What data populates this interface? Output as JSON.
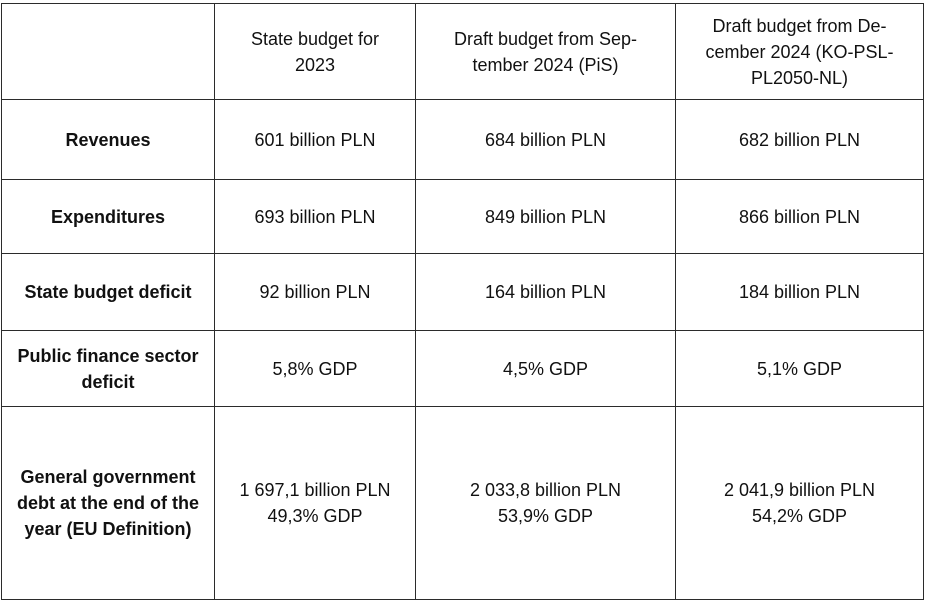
{
  "table": {
    "header": {
      "corner": "",
      "col1_line1": "State budget for",
      "col1_line2": "2023",
      "col2_line1": "Draft budget from Sep-",
      "col2_line2": "tember 2024 (PiS)",
      "col3_line1": "Draft budget from De-",
      "col3_line2": "cember 2024 (KO-PSL-",
      "col3_line3": "PL2050-NL)"
    },
    "rows": [
      {
        "label": "Revenues",
        "v2023": "601 billion PLN",
        "v_sep": "684 billion PLN",
        "v_dec": "682 billion PLN"
      },
      {
        "label": "Expenditures",
        "v2023": "693 billion PLN",
        "v_sep": "849 billion PLN",
        "v_dec": "866 billion PLN"
      },
      {
        "label": "State budget deficit",
        "v2023": "92 billion PLN",
        "v_sep": "164 billion PLN",
        "v_dec": "184 billion PLN"
      },
      {
        "label_line1": "Public finance sector",
        "label_line2": "deficit",
        "v2023": "5,8% GDP",
        "v_sep": "4,5% GDP",
        "v_dec": "5,1% GDP"
      },
      {
        "label_line1": "General government",
        "label_line2": "debt at the end of the",
        "label_line3": "year (EU Definition)",
        "v2023_line1": "1 697,1 billion PLN",
        "v2023_line2": "49,3% GDP",
        "v_sep_line1": "2 033,8 billion PLN",
        "v_sep_line2": "53,9% GDP",
        "v_dec_line1": "2 041,9 billion PLN",
        "v_dec_line2": "54,2% GDP"
      }
    ]
  }
}
